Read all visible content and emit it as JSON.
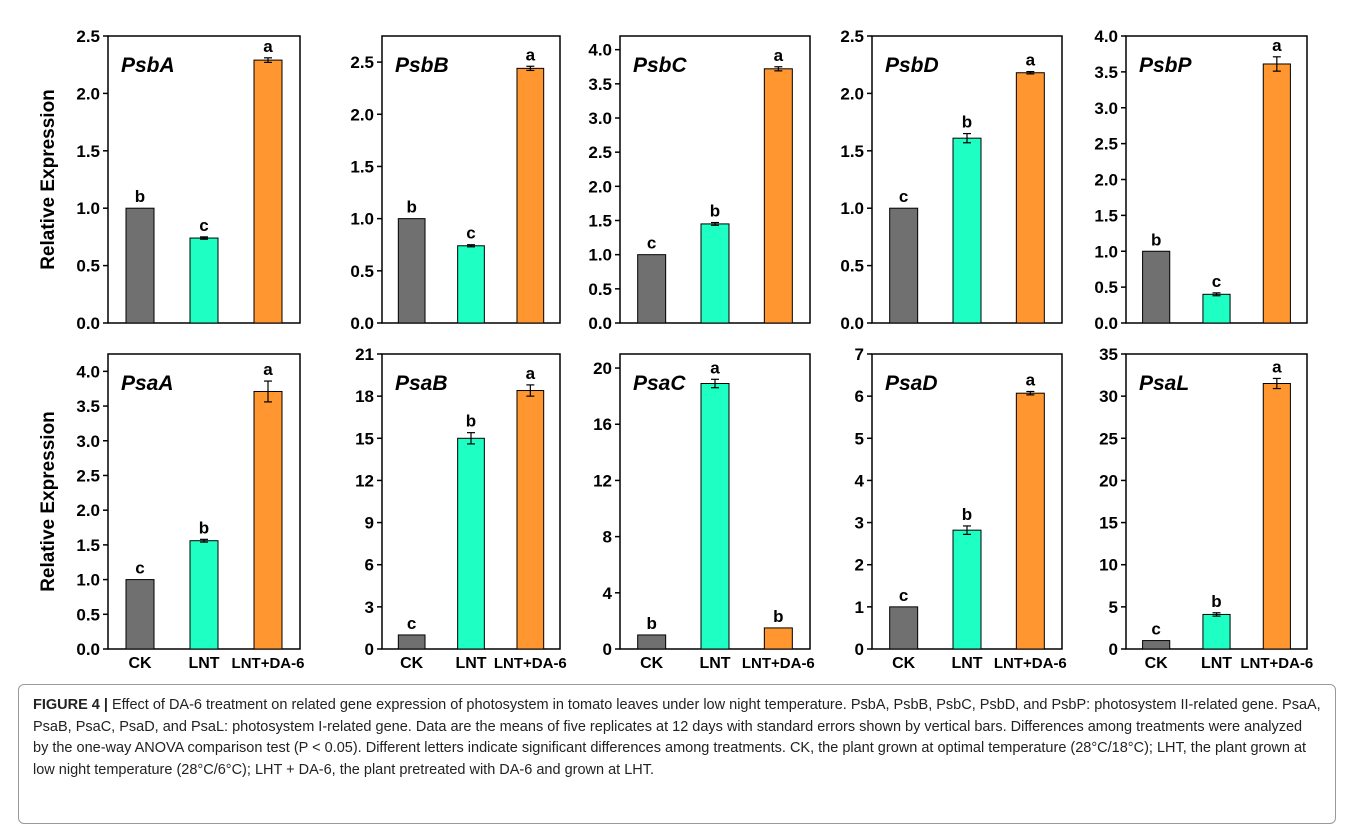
{
  "ylabel": "Relative Expression",
  "colors": {
    "CK": "#707070",
    "LNT": "#1effc4",
    "LNT+DA-6": "#ff9630"
  },
  "chart_data": [
    {
      "type": "bar",
      "title": "PsbA",
      "categories": [
        "CK",
        "LNT",
        "LNT+DA-6"
      ],
      "values": [
        1.0,
        0.74,
        2.29
      ],
      "errors": [
        0,
        0.01,
        0.02
      ],
      "letters": [
        "b",
        "c",
        "a"
      ],
      "ylim": [
        0,
        2.5
      ],
      "yticks": [
        "0.0",
        "0.5",
        "1.0",
        "1.5",
        "2.0",
        "2.5"
      ],
      "ylabel": "Relative Expression",
      "xlabels": [
        "",
        "",
        ""
      ]
    },
    {
      "type": "bar",
      "title": "PsbB",
      "categories": [
        "CK",
        "LNT",
        "LNT+DA-6"
      ],
      "values": [
        1.0,
        0.74,
        2.44
      ],
      "errors": [
        0,
        0.01,
        0.02
      ],
      "letters": [
        "b",
        "c",
        "a"
      ],
      "ylim": [
        0,
        2.75
      ],
      "yticks": [
        "0.0",
        "0.5",
        "1.0",
        "1.5",
        "2.0",
        "2.5"
      ],
      "ylabel": "",
      "xlabels": [
        "",
        "",
        ""
      ]
    },
    {
      "type": "bar",
      "title": "PsbC",
      "categories": [
        "CK",
        "LNT",
        "LNT+DA-6"
      ],
      "values": [
        1.0,
        1.45,
        3.72
      ],
      "errors": [
        0,
        0.02,
        0.03
      ],
      "letters": [
        "c",
        "b",
        "a"
      ],
      "ylim": [
        0,
        4.2
      ],
      "yticks": [
        "0.0",
        "0.5",
        "1.0",
        "1.5",
        "2.0",
        "2.5",
        "3.0",
        "3.5",
        "4.0"
      ],
      "ylabel": "",
      "xlabels": [
        "",
        "",
        ""
      ]
    },
    {
      "type": "bar",
      "title": "PsbD",
      "categories": [
        "CK",
        "LNT",
        "LNT+DA-6"
      ],
      "values": [
        1.0,
        1.61,
        2.18
      ],
      "errors": [
        0,
        0.04,
        0.01
      ],
      "letters": [
        "c",
        "b",
        "a"
      ],
      "ylim": [
        0,
        2.5
      ],
      "yticks": [
        "0.0",
        "0.5",
        "1.0",
        "1.5",
        "2.0",
        "2.5"
      ],
      "ylabel": "",
      "xlabels": [
        "",
        "",
        ""
      ]
    },
    {
      "type": "bar",
      "title": "PsbP",
      "categories": [
        "CK",
        "LNT",
        "LNT+DA-6"
      ],
      "values": [
        1.0,
        0.4,
        3.61
      ],
      "errors": [
        0,
        0.02,
        0.1
      ],
      "letters": [
        "b",
        "c",
        "a"
      ],
      "ylim": [
        0,
        4.0
      ],
      "yticks": [
        "0.0",
        "0.5",
        "1.0",
        "1.5",
        "2.0",
        "2.5",
        "3.0",
        "3.5",
        "4.0"
      ],
      "ylabel": "",
      "xlabels": [
        "",
        "",
        ""
      ]
    },
    {
      "type": "bar",
      "title": "PsaA",
      "categories": [
        "CK",
        "LNT",
        "LNT+DA-6"
      ],
      "values": [
        1.0,
        1.56,
        3.71
      ],
      "errors": [
        0,
        0.02,
        0.15
      ],
      "letters": [
        "c",
        "b",
        "a"
      ],
      "ylim": [
        0,
        4.25
      ],
      "yticks": [
        "0.0",
        "0.5",
        "1.0",
        "1.5",
        "2.0",
        "2.5",
        "3.0",
        "3.5",
        "4.0"
      ],
      "ylabel": "Relative Expression",
      "xlabels": [
        "CK",
        "LNT",
        "LNT+DA-6"
      ]
    },
    {
      "type": "bar",
      "title": "PsaB",
      "categories": [
        "CK",
        "LNT",
        "LNT+DA-6"
      ],
      "values": [
        1.0,
        15.0,
        18.4
      ],
      "errors": [
        0,
        0.4,
        0.4
      ],
      "letters": [
        "c",
        "b",
        "a"
      ],
      "ylim": [
        0,
        21
      ],
      "yticks": [
        "0",
        "3",
        "6",
        "9",
        "12",
        "15",
        "18",
        "21"
      ],
      "ylabel": "",
      "xlabels": [
        "CK",
        "LNT",
        "LNT+DA-6"
      ]
    },
    {
      "type": "bar",
      "title": "PsaC",
      "categories": [
        "CK",
        "LNT",
        "LNT+DA-6"
      ],
      "values": [
        1.0,
        18.9,
        1.5
      ],
      "errors": [
        0,
        0.3,
        0
      ],
      "letters": [
        "b",
        "a",
        "b"
      ],
      "ylim": [
        0,
        21
      ],
      "yticks": [
        "0",
        "4",
        "8",
        "12",
        "16",
        "20"
      ],
      "ylabel": "",
      "xlabels": [
        "CK",
        "LNT",
        "LNT+DA-6"
      ]
    },
    {
      "type": "bar",
      "title": "PsaD",
      "categories": [
        "CK",
        "LNT",
        "LNT+DA-6"
      ],
      "values": [
        1.0,
        2.82,
        6.07
      ],
      "errors": [
        0,
        0.1,
        0.04
      ],
      "letters": [
        "c",
        "b",
        "a"
      ],
      "ylim": [
        0,
        7
      ],
      "yticks": [
        "0",
        "1",
        "2",
        "3",
        "4",
        "5",
        "6",
        "7"
      ],
      "ylabel": "",
      "xlabels": [
        "CK",
        "LNT",
        "LNT+DA-6"
      ]
    },
    {
      "type": "bar",
      "title": "PsaL",
      "categories": [
        "CK",
        "LNT",
        "LNT+DA-6"
      ],
      "values": [
        1.0,
        4.1,
        31.5
      ],
      "errors": [
        0,
        0.2,
        0.6
      ],
      "letters": [
        "c",
        "b",
        "a"
      ],
      "ylim": [
        0,
        35
      ],
      "yticks": [
        "0",
        "5",
        "10",
        "15",
        "20",
        "25",
        "30",
        "35"
      ],
      "ylabel": "",
      "xlabels": [
        "CK",
        "LNT",
        "LNT+DA-6"
      ]
    }
  ],
  "caption": {
    "label": "FIGURE 4 |",
    "text": " Effect of DA-6 treatment on related gene expression of photosystem in tomato leaves under low night temperature. PsbA, PsbB, PsbC, PsbD, and PsbP: photosystem II-related gene. PsaA, PsaB, PsaC, PsaD, and PsaL: photosystem I-related gene. Data are the means of five replicates at 12 days with standard errors shown by vertical bars. Differences among treatments were analyzed by the one-way ANOVA comparison test (P < 0.05). Different letters indicate significant differences among treatments. CK, the plant grown at optimal temperature (28°C/18°C); LHT, the plant grown at low night temperature (28°C/6°C); LHT + DA-6, the plant pretreated with DA-6 and grown at LHT."
  }
}
